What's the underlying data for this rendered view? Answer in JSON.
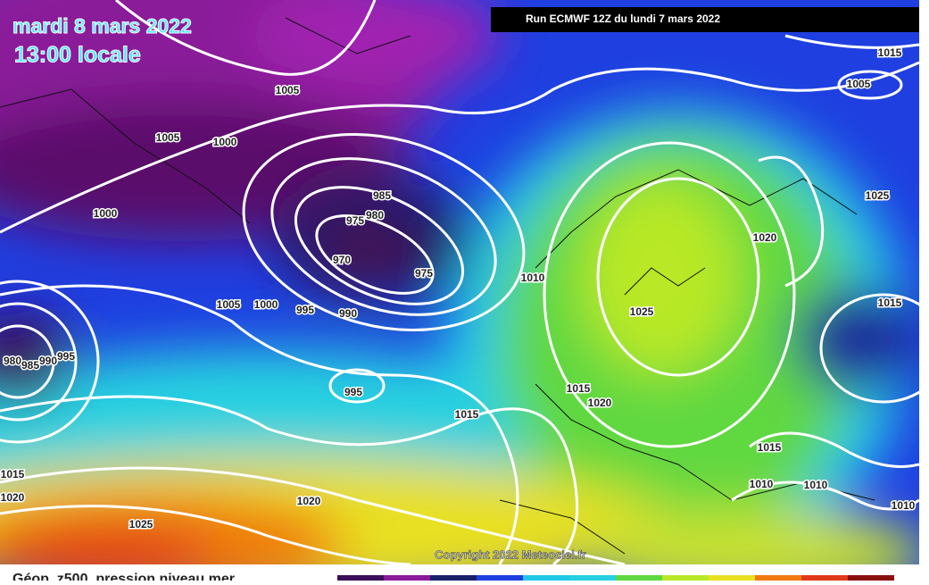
{
  "header": {
    "date": "mardi 8 mars 2022",
    "time": "13:00 locale",
    "run": "Run ECMWF 12Z du lundi 7 mars 2022"
  },
  "isobar_labels": [
    1005,
    1005,
    1000,
    1000,
    985,
    975,
    980,
    970,
    975,
    1010,
    1005,
    1000,
    995,
    990,
    980,
    985,
    990,
    995,
    995,
    1015,
    1020,
    1015,
    1025,
    1020,
    1025,
    1015,
    1005,
    1015,
    1015,
    1010,
    1010,
    1010,
    1015,
    1020,
    1020,
    1025
  ],
  "footer": {
    "copyright": "Copyright 2022 Meteociel.fr",
    "caption": "Géop. z500, pression niveau mer"
  }
}
